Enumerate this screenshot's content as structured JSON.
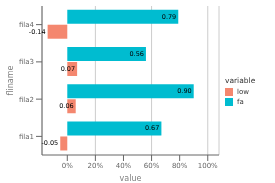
{
  "chart_data": {
    "type": "bar",
    "orientation": "horizontal",
    "categories": [
      "fila1",
      "fila2",
      "fila3",
      "fila4"
    ],
    "series": [
      {
        "name": "low",
        "color": "#F4876F",
        "values": [
          -0.05,
          0.06,
          0.07,
          -0.14
        ],
        "value_labels": [
          "-0.05",
          "0.06",
          "0.07",
          "-0.14"
        ]
      },
      {
        "name": "fa",
        "color": "#00BCD0",
        "values": [
          0.67,
          0.9,
          0.56,
          0.79
        ],
        "value_labels": [
          "0.67",
          "0.90",
          "0.56",
          "0.79"
        ]
      }
    ],
    "xlabel": "value",
    "ylabel": "fliname",
    "legend_title": "variable",
    "xlim": [
      -0.18,
      1.08
    ],
    "xticks": [
      {
        "value": 0.0,
        "label": "0%"
      },
      {
        "value": 0.2,
        "label": "20%"
      },
      {
        "value": 0.4,
        "label": "40%"
      },
      {
        "value": 0.6,
        "label": "60%"
      },
      {
        "value": 0.8,
        "label": "80%"
      },
      {
        "value": 1.0,
        "label": "100%"
      }
    ],
    "grid": true,
    "legend": "right",
    "data_labels": true
  }
}
